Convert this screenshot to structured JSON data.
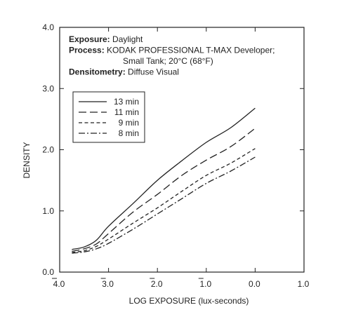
{
  "chart_data": {
    "type": "line",
    "title": "",
    "xlabel": "LOG EXPOSURE (lux-seconds)",
    "ylabel": "DENSITY",
    "xlim": [
      -4.0,
      1.0
    ],
    "ylim": [
      0.0,
      4.0
    ],
    "x_ticks": [
      -4.0,
      -3.0,
      -2.0,
      -1.0,
      0.0,
      1.0
    ],
    "x_tick_labels": [
      {
        "main": "4.0",
        "bar": true
      },
      {
        "main": "3.0",
        "bar": true
      },
      {
        "main": "2.0",
        "bar": true
      },
      {
        "main": "1.0",
        "bar": true
      },
      {
        "main": "0.0",
        "bar": false
      },
      {
        "main": "1.0",
        "bar": false
      }
    ],
    "y_ticks": [
      0.0,
      1.0,
      2.0,
      3.0,
      4.0
    ],
    "y_tick_labels": [
      "0.0",
      "1.0",
      "2.0",
      "3.0",
      "4.0"
    ],
    "grid": false,
    "info_box": {
      "lines": [
        {
          "label": "Exposure:",
          "value": " Daylight"
        },
        {
          "label": "Process:",
          "value": " KODAK PROFESSIONAL T-MAX Developer;"
        },
        {
          "label": "",
          "value": "Small Tank; 20°C (68°F)"
        },
        {
          "label": "Densitometry:",
          "value": " Diffuse Visual"
        }
      ]
    },
    "legend_position": "upper-left",
    "series": [
      {
        "name": "13 min",
        "dash": "solid",
        "x": [
          -3.75,
          -3.5,
          -3.25,
          -3.0,
          -2.5,
          -2.0,
          -1.5,
          -1.0,
          -0.5,
          0.0
        ],
        "y": [
          0.37,
          0.41,
          0.52,
          0.75,
          1.12,
          1.5,
          1.82,
          2.12,
          2.36,
          2.68
        ]
      },
      {
        "name": "11 min",
        "dash": "long-dash",
        "x": [
          -3.75,
          -3.5,
          -3.25,
          -3.0,
          -2.5,
          -2.0,
          -1.5,
          -1.0,
          -0.5,
          0.0
        ],
        "y": [
          0.34,
          0.38,
          0.46,
          0.63,
          0.98,
          1.27,
          1.58,
          1.83,
          2.05,
          2.35
        ]
      },
      {
        "name": "9 min",
        "dash": "short-dash",
        "x": [
          -3.75,
          -3.5,
          -3.25,
          -3.0,
          -2.5,
          -2.0,
          -1.5,
          -1.0,
          -0.5,
          0.0
        ],
        "y": [
          0.32,
          0.35,
          0.42,
          0.54,
          0.8,
          1.05,
          1.32,
          1.58,
          1.78,
          2.02
        ]
      },
      {
        "name": "8 min",
        "dash": "dash-dot",
        "x": [
          -3.75,
          -3.5,
          -3.25,
          -3.0,
          -2.5,
          -2.0,
          -1.5,
          -1.0,
          -0.5,
          0.0
        ],
        "y": [
          0.31,
          0.33,
          0.38,
          0.47,
          0.7,
          0.95,
          1.2,
          1.45,
          1.65,
          1.88
        ]
      }
    ]
  }
}
